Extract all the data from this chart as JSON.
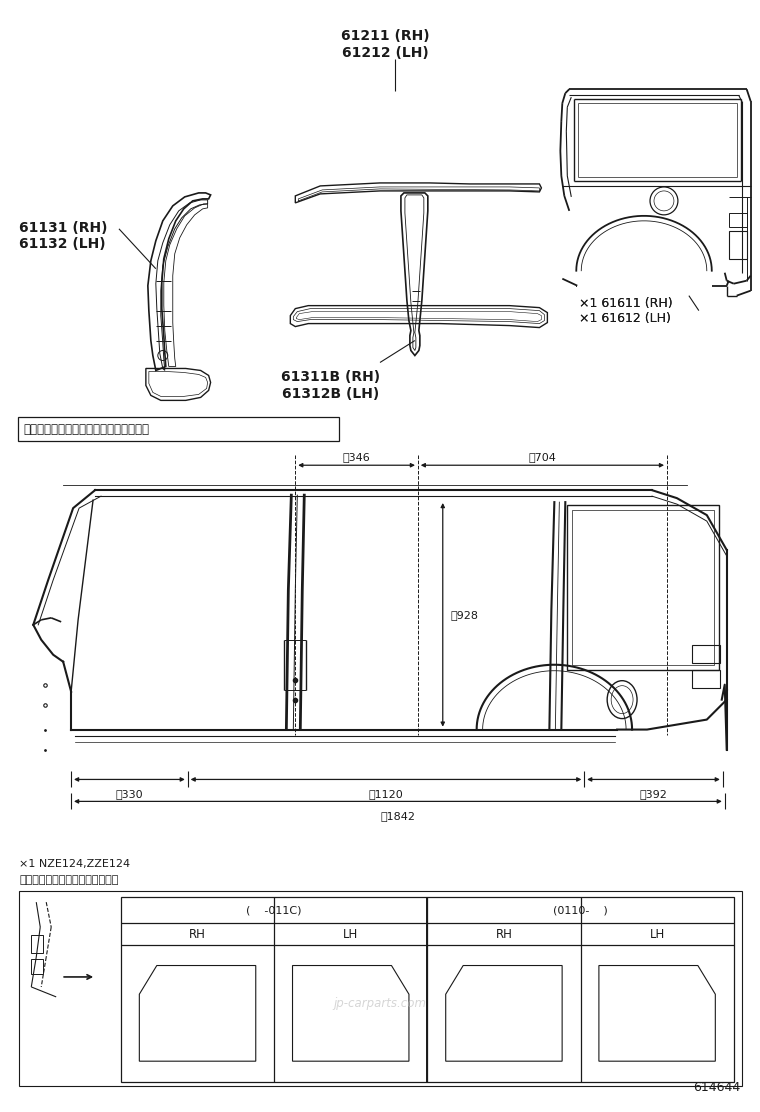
{
  "bg_color": "#ffffff",
  "line_color": "#1a1a1a",
  "fig_width": 7.6,
  "fig_height": 11.12,
  "dpi": 100,
  "page_id": "614644",
  "section_title": "補給用サイドアウタパネルのカット位置",
  "footnote1": "×1 NZE124,ZZE124",
  "footnote2": "クオータパネル内側のライニング",
  "table_header1": "(    -011C)",
  "table_header2": "(0110-    )",
  "table_cols": [
    "RH",
    "LH",
    "RH",
    "LH"
  ],
  "dim_346": "絀346",
  "dim_704": "絀704",
  "dim_928": "絀928",
  "dim_330": "絀330",
  "dim_1120": "絀1120",
  "dim_392": "絀392",
  "dim_1842": "絀1842",
  "label_61211": "61211 (RH)\n61212 (LH)",
  "label_61131": "61131 (RH)\n61132 (LH)",
  "label_61311": "61311B (RH)\n61312B (LH)",
  "label_61611": "×1 61611 (RH)\n×1 61612 (LH)",
  "watermark": "jp-carparts.com"
}
